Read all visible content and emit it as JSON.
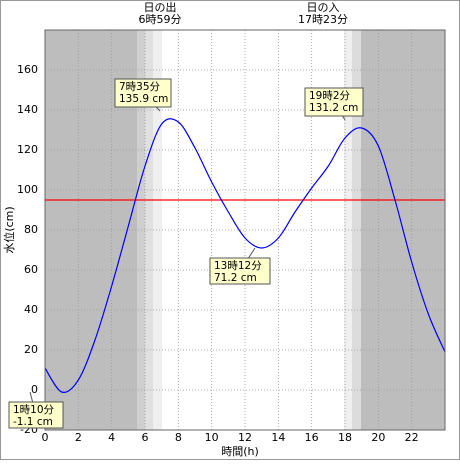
{
  "chart_data": {
    "type": "line",
    "sunrise_label": "日の出",
    "sunrise_time": "6時59分",
    "sunset_label": "日の入",
    "sunset_time": "17時23分",
    "x_label": "時間(h)",
    "y_label": "水位(cm)",
    "x": [
      0,
      1,
      2,
      3,
      4,
      5,
      6,
      7,
      8,
      9,
      10,
      11,
      12,
      13,
      14,
      15,
      16,
      17,
      18,
      19,
      20,
      21,
      22,
      23,
      24
    ],
    "series": [
      {
        "color": "#0000ff",
        "values": [
          11,
          -1,
          5,
          25,
          52,
          82,
          112,
          133,
          134,
          121,
          104,
          89,
          76,
          71,
          76,
          89,
          101,
          112,
          126,
          131,
          122,
          95,
          64,
          38,
          19
        ]
      }
    ],
    "reference_line": {
      "value": 95,
      "color": "#ff0000"
    },
    "xlim": [
      0,
      24
    ],
    "xticks": [
      0,
      2,
      4,
      6,
      8,
      10,
      12,
      14,
      16,
      18,
      20,
      22
    ],
    "ylim": [
      -20,
      180
    ],
    "yticks": [
      -20,
      0,
      20,
      40,
      60,
      80,
      100,
      120,
      140,
      160
    ],
    "grid": true,
    "annotations": [
      {
        "time": "1時10分",
        "level": "-1.1 cm"
      },
      {
        "time": "7時35分",
        "level": "135.9 cm"
      },
      {
        "time": "13時12分",
        "level": "71.2 cm"
      },
      {
        "time": "19時2分",
        "level": "131.2 cm"
      }
    ]
  }
}
